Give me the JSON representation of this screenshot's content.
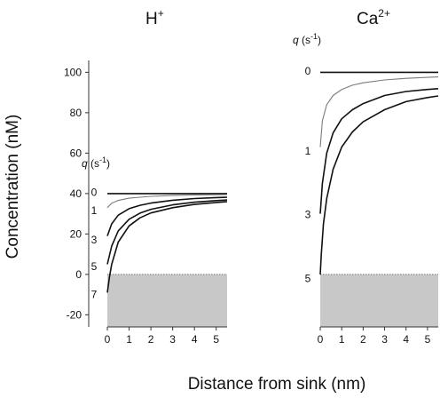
{
  "figure": {
    "ylabel": "Concentration (nM)",
    "xlabel": "Distance from sink (nm)",
    "q_header_italic": "q",
    "q_header_unit": " (s",
    "q_header_exp": "-1",
    "q_header_close": ")"
  },
  "colors": {
    "curve": "#111111",
    "curve_light": "#7a7a7a",
    "shade": "#c8c8c8",
    "axis": "#333333"
  },
  "chart_data": [
    {
      "type": "line",
      "title": "H",
      "title_sup": "+",
      "xlabel": "Distance from sink (nm)",
      "ylabel": "Concentration (nM)",
      "xlim": [
        0,
        5.5
      ],
      "ylim": [
        -26,
        105
      ],
      "x_ticks": [
        0,
        1,
        2,
        3,
        4,
        5
      ],
      "y_ticks": [
        -20,
        0,
        20,
        40,
        60,
        80,
        100
      ],
      "bulk": 40,
      "shaded_region": {
        "y_from": -26,
        "y_to": 0
      },
      "q_values": [
        "0",
        "1",
        "3",
        "5",
        "7"
      ],
      "q_label_y": [
        40.5,
        31.5,
        17,
        4,
        -10
      ],
      "series": [
        {
          "q": "0",
          "x": [
            0,
            5.5
          ],
          "y": [
            40,
            40
          ],
          "style": "dark"
        },
        {
          "q": "1",
          "x": [
            0,
            0.2,
            0.5,
            1,
            1.5,
            2,
            3,
            4,
            5,
            5.5
          ],
          "y": [
            33,
            35.2,
            36.6,
            37.7,
            38.2,
            38.6,
            39.0,
            39.3,
            39.4,
            39.5
          ],
          "style": "light"
        },
        {
          "q": "3",
          "x": [
            0,
            0.2,
            0.5,
            1,
            1.5,
            2,
            3,
            4,
            5,
            5.5
          ],
          "y": [
            19,
            25,
            29.3,
            32.5,
            34.2,
            35.3,
            36.7,
            37.5,
            38.0,
            38.2
          ],
          "style": "dark"
        },
        {
          "q": "5",
          "x": [
            0,
            0.2,
            0.5,
            1,
            1.5,
            2,
            3,
            4,
            5,
            5.5
          ],
          "y": [
            5,
            14,
            21.5,
            27.3,
            30.3,
            32.2,
            34.4,
            35.7,
            36.5,
            36.8
          ],
          "style": "dark"
        },
        {
          "q": "7",
          "x": [
            0,
            0.1,
            0.2,
            0.5,
            1,
            1.5,
            2,
            3,
            4,
            5,
            5.5
          ],
          "y": [
            -9,
            -1,
            5,
            16,
            24,
            28,
            30.4,
            33.0,
            34.6,
            35.6,
            36.0
          ],
          "style": "dark"
        }
      ]
    },
    {
      "type": "line",
      "title": "Ca",
      "title_sup": "2+",
      "xlabel": "Distance from sink (nm)",
      "xlim": [
        0,
        5.5
      ],
      "ylim": [
        -26,
        105
      ],
      "x_ticks": [
        0,
        1,
        2,
        3,
        4,
        5
      ],
      "bulk": 100,
      "shaded_region": {
        "y_from": -26,
        "y_to": 0
      },
      "q_values": [
        "0",
        "1",
        "3",
        "5"
      ],
      "q_label_y": [
        100.5,
        61,
        29.5,
        -2
      ],
      "series": [
        {
          "q": "0",
          "x": [
            0,
            5.5
          ],
          "y": [
            100,
            100
          ],
          "style": "dark"
        },
        {
          "q": "1",
          "x": [
            0,
            0.1,
            0.3,
            0.6,
            1,
            1.5,
            2,
            3,
            4,
            5,
            5.5
          ],
          "y": [
            63,
            76,
            84,
            88.5,
            91.5,
            93.6,
            94.8,
            96.2,
            97.0,
            97.5,
            97.7
          ],
          "style": "light"
        },
        {
          "q": "3",
          "x": [
            0,
            0.1,
            0.3,
            0.6,
            1,
            1.5,
            2,
            3,
            4,
            5,
            5.5
          ],
          "y": [
            30,
            45,
            60,
            70,
            77,
            81.5,
            84.5,
            88.5,
            90.5,
            91.5,
            91.9
          ],
          "style": "dark"
        },
        {
          "q": "5",
          "x": [
            0,
            0.05,
            0.15,
            0.3,
            0.6,
            1,
            1.5,
            2,
            3,
            4,
            5,
            5.5
          ],
          "y": [
            0,
            10,
            25,
            37.5,
            52,
            63,
            70.5,
            75.5,
            81.5,
            85.5,
            87.5,
            88.3
          ],
          "style": "dark"
        }
      ]
    }
  ]
}
